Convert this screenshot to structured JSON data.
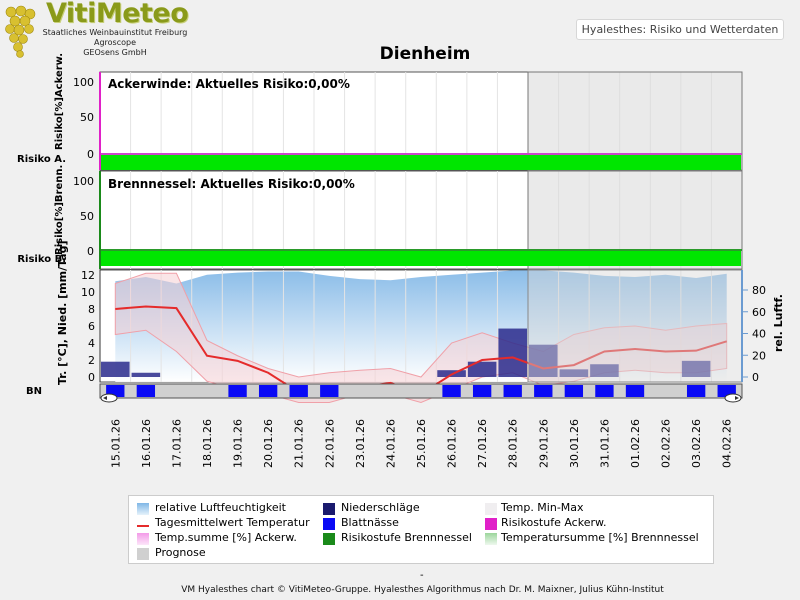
{
  "header": {
    "logo_title": "VitiMeteo",
    "institute_lines": [
      "Staatliches Weinbauinstitut Freiburg",
      "Agroscope",
      "GEOsens GmbH"
    ],
    "subtitle": "Hyalesthes: Risiko und Wetterdaten",
    "station": "Dienheim"
  },
  "colors": {
    "risk_green": "#00e600",
    "forecast_shade": "#d8d8d8",
    "humidity_blue": "#8fc1ea",
    "precip_navy": "#2a2a8c",
    "leafwet_blue": "#0a0af5",
    "temp_red": "#e52b2b",
    "minmax_pink": "#f5d0d4",
    "ackerw_magenta": "#e020c8",
    "brenn_green": "#1a8a1a"
  },
  "chart_data": [
    {
      "type": "area",
      "title": "Ackerwinde: Aktuelles Risiko:0,00%",
      "ylabel": "Risiko[%]Ackerw.",
      "risk_row_label": "Risiko A.",
      "yticks": [
        "100",
        "50",
        "0"
      ],
      "ylim": [
        0,
        100
      ],
      "values": "0 for all days",
      "risk_level": "low (green)"
    },
    {
      "type": "area",
      "title": "Brennnessel: Aktuelles Risiko:0,00%",
      "ylabel": "Risiko[%]Brenn.",
      "risk_row_label": "Risiko B.",
      "yticks": [
        "100",
        "50",
        "0"
      ],
      "ylim": [
        0,
        100
      ],
      "values": "0 for all days",
      "risk_level": "low (green)"
    },
    {
      "type": "line",
      "ylabel_left": "Tr. [°C], Nied. [mm/Tag]",
      "ylabel_right": "rel. Luftf.",
      "bottom_row_label": "BN",
      "yticks_left": [
        "12",
        "10",
        "8",
        "6",
        "4",
        "2",
        "0"
      ],
      "yticks_right": [
        "80",
        "60",
        "40",
        "20",
        "0"
      ],
      "ylim_left": [
        0,
        12.5
      ],
      "ylim_right": [
        0,
        100
      ],
      "categories": [
        "15.01.26",
        "16.01.26",
        "17.01.26",
        "18.01.26",
        "19.01.26",
        "20.01.26",
        "21.01.26",
        "22.01.26",
        "23.01.26",
        "24.01.26",
        "25.01.26",
        "26.01.26",
        "27.01.26",
        "28.01.26",
        "29.01.26",
        "30.01.26",
        "31.01.26",
        "01.02.26",
        "02.02.26",
        "03.02.26",
        "04.02.26"
      ],
      "forecast_from": "29.01.26",
      "series": [
        {
          "name": "Tagesmittelwert Temperatur",
          "values": [
            8.0,
            8.3,
            8.1,
            2.5,
            1.9,
            0.5,
            -1.8,
            -2.0,
            -1.2,
            -0.7,
            -2.0,
            0.3,
            2.0,
            2.3,
            1.0,
            1.4,
            3.0,
            3.3,
            3.0,
            3.1,
            4.2
          ]
        },
        {
          "name": "Temp. Min-Max (max)",
          "values": [
            11.0,
            12.2,
            12.2,
            4.3,
            2.5,
            1.0,
            0.0,
            0.5,
            0.8,
            1.0,
            0.0,
            4.0,
            5.2,
            4.0,
            3.0,
            5.0,
            5.8,
            6.0,
            5.5,
            6.0,
            6.3
          ]
        },
        {
          "name": "Temp. Min-Max (min)",
          "values": [
            5.0,
            5.5,
            3.0,
            -0.5,
            -1.5,
            -2.0,
            -3.0,
            -3.0,
            -2.0,
            -2.0,
            -3.0,
            -1.5,
            0.0,
            0.5,
            -1.0,
            -0.5,
            0.5,
            0.8,
            0.5,
            0.5,
            1.0
          ]
        },
        {
          "name": "relative Luftfeuchtigkeit",
          "values": [
            88,
            92,
            86,
            94,
            96,
            97,
            97,
            93,
            90,
            89,
            92,
            94,
            96,
            98,
            98,
            96,
            93,
            92,
            94,
            91,
            95
          ]
        },
        {
          "name": "Niederschläge",
          "values": [
            1.8,
            0.5,
            0,
            0,
            0,
            0,
            0,
            0,
            0,
            0,
            0,
            0.8,
            1.8,
            5.7,
            3.8,
            0.9,
            1.5,
            0,
            0,
            1.9,
            0
          ]
        }
      ],
      "blattnaesse_days": [
        0,
        1,
        4,
        5,
        6,
        7,
        11,
        12,
        13,
        14,
        15,
        16,
        17,
        19,
        20
      ]
    }
  ],
  "legend": {
    "items": [
      {
        "key": "rh",
        "label": "relative Luftfeuchtigkeit"
      },
      {
        "key": "precip",
        "label": "Niederschläge"
      },
      {
        "key": "minmax",
        "label": "Temp. Min-Max"
      },
      {
        "key": "temp",
        "label": "Tagesmittelwert Temperatur"
      },
      {
        "key": "wet",
        "label": "Blattnässe"
      },
      {
        "key": "riskA",
        "label": "Risikostufe Ackerw."
      },
      {
        "key": "tsumA",
        "label": "Temp.summe [%] Ackerw."
      },
      {
        "key": "riskB",
        "label": "Risikostufe Brennnessel"
      },
      {
        "key": "tsumB",
        "label": "Temperatursumme [%] Brennnessel"
      },
      {
        "key": "prog",
        "label": "Prognose"
      }
    ]
  },
  "footer": {
    "dash": "-",
    "text": "VM Hyalesthes chart © VitiMeteo-Gruppe. Hyalesthes Algorithmus nach Dr. M. Maixner, Julius Kühn-Institut"
  }
}
